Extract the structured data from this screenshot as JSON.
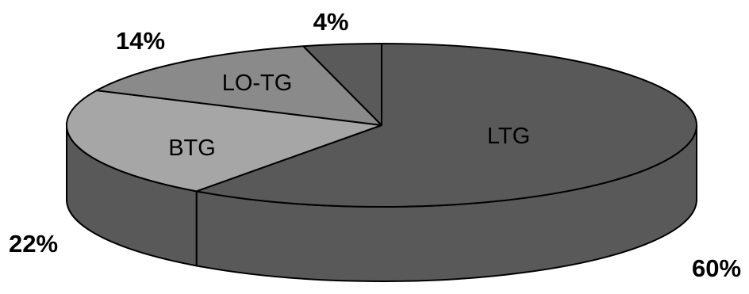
{
  "chart_data": {
    "type": "pie",
    "style": "3d",
    "categories": [
      "LTG",
      "BTG",
      "LO-TG",
      ""
    ],
    "values": [
      60,
      22,
      14,
      4
    ],
    "value_labels": [
      "60%",
      "22%",
      "14%",
      "4%"
    ],
    "colors": {
      "LTG": "#595959",
      "BTG": "#a6a6a6",
      "LO-TG": "#8a8a8a",
      "other": "#5a5a5a",
      "side": "#595959",
      "outline": "#000000"
    },
    "title": "",
    "legend": "none"
  }
}
